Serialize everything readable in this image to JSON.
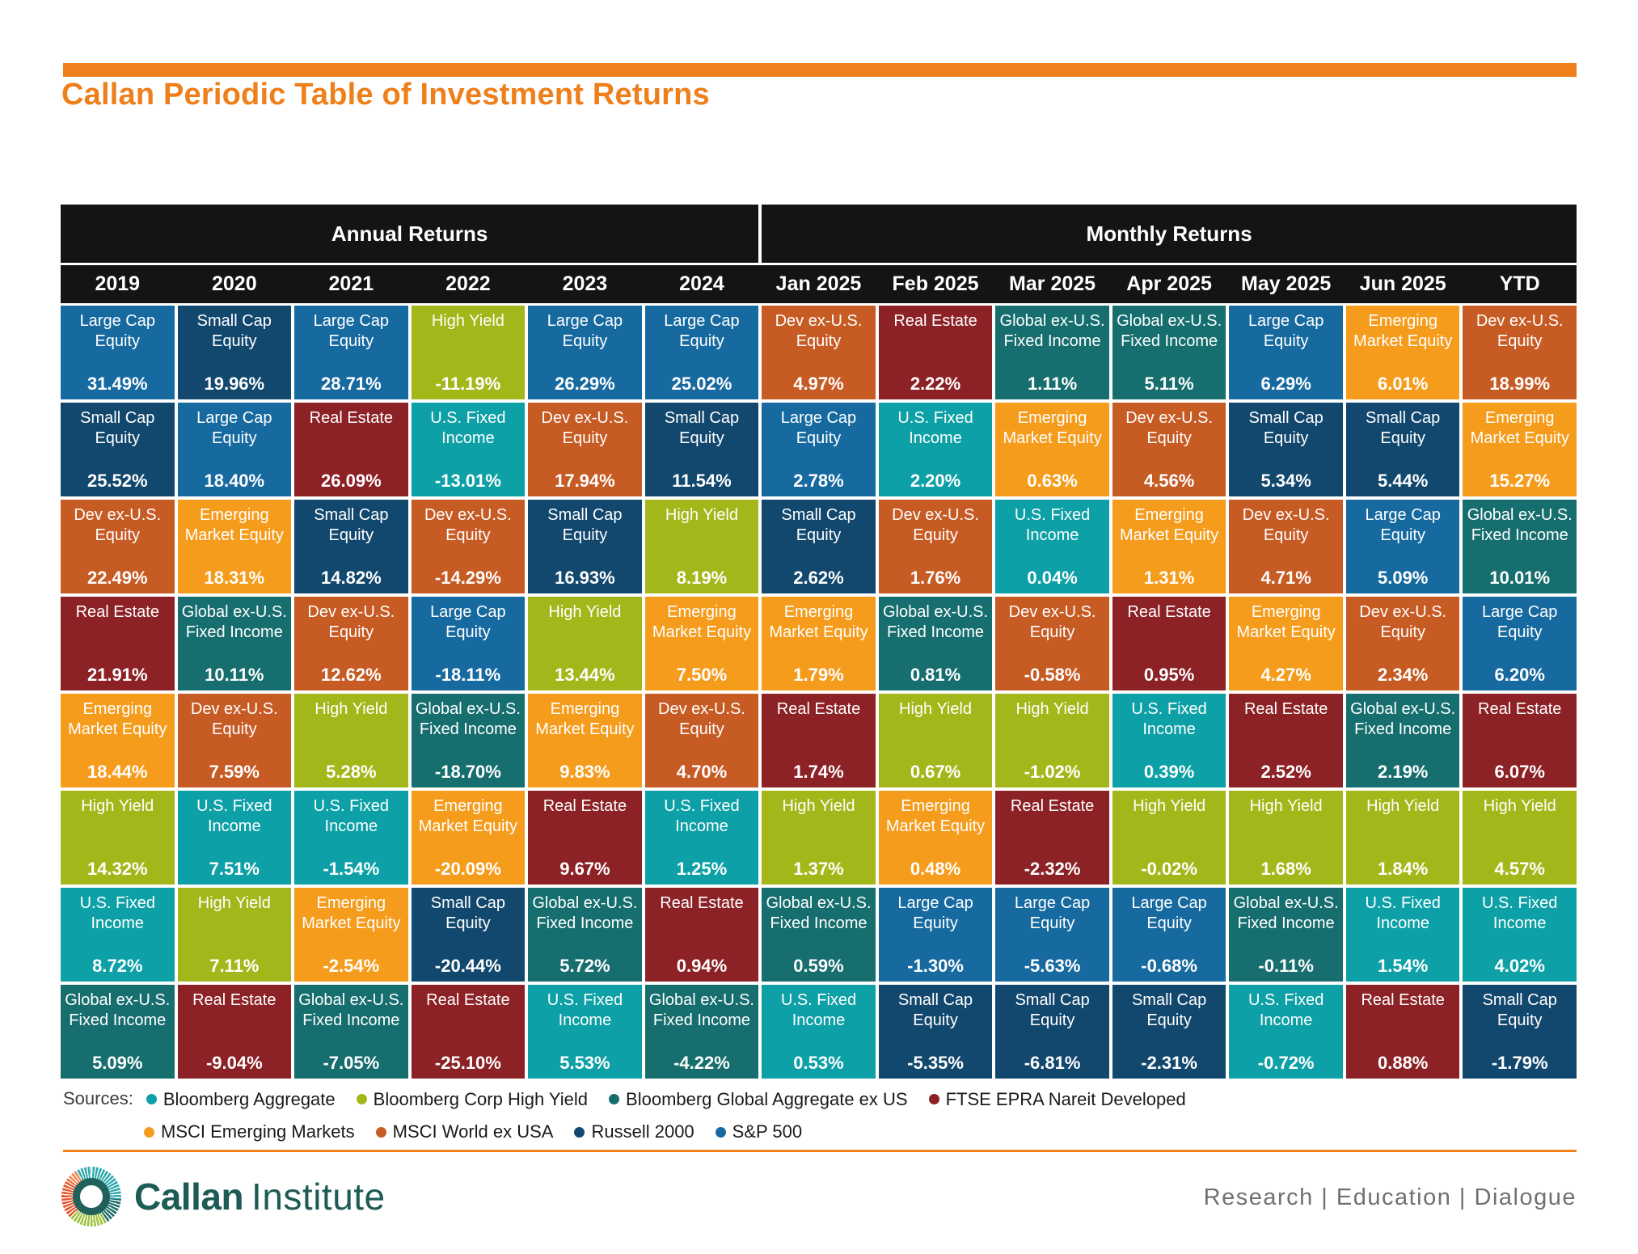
{
  "accent_color": "#EE7F1A",
  "header_bg_color": "#141414",
  "chart_data": {
    "type": "table",
    "title": "Callan Periodic Table of Investment Returns",
    "column_groups": [
      {
        "label": "Annual Returns",
        "span": 6
      },
      {
        "label": "Monthly Returns",
        "span": 7
      }
    ],
    "assets": {
      "large_cap": {
        "label": "Large Cap\nEquity",
        "color": "#176AA0"
      },
      "small_cap": {
        "label": "Small Cap\nEquity",
        "color": "#12486E"
      },
      "dev_ex_us": {
        "label": "Dev ex-U.S.\nEquity",
        "color": "#C75B24"
      },
      "em_equity": {
        "label": "Emerging\nMarket Equity",
        "color": "#F59C1D"
      },
      "high_yield": {
        "label": "High Yield",
        "color": "#A4B71A"
      },
      "us_fixed": {
        "label": "U.S. Fixed\nIncome",
        "color": "#0DA0A6"
      },
      "gl_ex_us_fi": {
        "label": "Global ex-U.S.\nFixed Income",
        "color": "#176E6E"
      },
      "real_estate": {
        "label": "Real Estate",
        "color": "#8C2126"
      }
    },
    "columns": [
      {
        "label": "2019",
        "group": "annual",
        "cells": [
          [
            "large_cap",
            "31.49%"
          ],
          [
            "small_cap",
            "25.52%"
          ],
          [
            "dev_ex_us",
            "22.49%"
          ],
          [
            "real_estate",
            "21.91%"
          ],
          [
            "em_equity",
            "18.44%"
          ],
          [
            "high_yield",
            "14.32%"
          ],
          [
            "us_fixed",
            "8.72%"
          ],
          [
            "gl_ex_us_fi",
            "5.09%"
          ]
        ]
      },
      {
        "label": "2020",
        "group": "annual",
        "cells": [
          [
            "small_cap",
            "19.96%"
          ],
          [
            "large_cap",
            "18.40%"
          ],
          [
            "em_equity",
            "18.31%"
          ],
          [
            "gl_ex_us_fi",
            "10.11%"
          ],
          [
            "dev_ex_us",
            "7.59%"
          ],
          [
            "us_fixed",
            "7.51%"
          ],
          [
            "high_yield",
            "7.11%"
          ],
          [
            "real_estate",
            "-9.04%"
          ]
        ]
      },
      {
        "label": "2021",
        "group": "annual",
        "cells": [
          [
            "large_cap",
            "28.71%"
          ],
          [
            "real_estate",
            "26.09%"
          ],
          [
            "small_cap",
            "14.82%"
          ],
          [
            "dev_ex_us",
            "12.62%"
          ],
          [
            "high_yield",
            "5.28%"
          ],
          [
            "us_fixed",
            "-1.54%"
          ],
          [
            "em_equity",
            "-2.54%"
          ],
          [
            "gl_ex_us_fi",
            "-7.05%"
          ]
        ]
      },
      {
        "label": "2022",
        "group": "annual",
        "cells": [
          [
            "high_yield",
            "-11.19%"
          ],
          [
            "us_fixed",
            "-13.01%"
          ],
          [
            "dev_ex_us",
            "-14.29%"
          ],
          [
            "large_cap",
            "-18.11%"
          ],
          [
            "gl_ex_us_fi",
            "-18.70%"
          ],
          [
            "em_equity",
            "-20.09%"
          ],
          [
            "small_cap",
            "-20.44%"
          ],
          [
            "real_estate",
            "-25.10%"
          ]
        ]
      },
      {
        "label": "2023",
        "group": "annual",
        "cells": [
          [
            "large_cap",
            "26.29%"
          ],
          [
            "dev_ex_us",
            "17.94%"
          ],
          [
            "small_cap",
            "16.93%"
          ],
          [
            "high_yield",
            "13.44%"
          ],
          [
            "em_equity",
            "9.83%"
          ],
          [
            "real_estate",
            "9.67%"
          ],
          [
            "gl_ex_us_fi",
            "5.72%"
          ],
          [
            "us_fixed",
            "5.53%"
          ]
        ]
      },
      {
        "label": "2024",
        "group": "annual",
        "cells": [
          [
            "large_cap",
            "25.02%"
          ],
          [
            "small_cap",
            "11.54%"
          ],
          [
            "high_yield",
            "8.19%"
          ],
          [
            "em_equity",
            "7.50%"
          ],
          [
            "dev_ex_us",
            "4.70%"
          ],
          [
            "us_fixed",
            "1.25%"
          ],
          [
            "real_estate",
            "0.94%"
          ],
          [
            "gl_ex_us_fi",
            "-4.22%"
          ]
        ]
      },
      {
        "label": "Jan 2025",
        "group": "monthly",
        "cells": [
          [
            "dev_ex_us",
            "4.97%"
          ],
          [
            "large_cap",
            "2.78%"
          ],
          [
            "small_cap",
            "2.62%"
          ],
          [
            "em_equity",
            "1.79%"
          ],
          [
            "real_estate",
            "1.74%"
          ],
          [
            "high_yield",
            "1.37%"
          ],
          [
            "gl_ex_us_fi",
            "0.59%"
          ],
          [
            "us_fixed",
            "0.53%"
          ]
        ]
      },
      {
        "label": "Feb 2025",
        "group": "monthly",
        "cells": [
          [
            "real_estate",
            "2.22%"
          ],
          [
            "us_fixed",
            "2.20%"
          ],
          [
            "dev_ex_us",
            "1.76%"
          ],
          [
            "gl_ex_us_fi",
            "0.81%"
          ],
          [
            "high_yield",
            "0.67%"
          ],
          [
            "em_equity",
            "0.48%"
          ],
          [
            "large_cap",
            "-1.30%"
          ],
          [
            "small_cap",
            "-5.35%"
          ]
        ]
      },
      {
        "label": "Mar 2025",
        "group": "monthly",
        "cells": [
          [
            "gl_ex_us_fi",
            "1.11%"
          ],
          [
            "em_equity",
            "0.63%"
          ],
          [
            "us_fixed",
            "0.04%"
          ],
          [
            "dev_ex_us",
            "-0.58%"
          ],
          [
            "high_yield",
            "-1.02%"
          ],
          [
            "real_estate",
            "-2.32%"
          ],
          [
            "large_cap",
            "-5.63%"
          ],
          [
            "small_cap",
            "-6.81%"
          ]
        ]
      },
      {
        "label": "Apr 2025",
        "group": "monthly",
        "cells": [
          [
            "gl_ex_us_fi",
            "5.11%"
          ],
          [
            "dev_ex_us",
            "4.56%"
          ],
          [
            "em_equity",
            "1.31%"
          ],
          [
            "real_estate",
            "0.95%"
          ],
          [
            "us_fixed",
            "0.39%"
          ],
          [
            "high_yield",
            "-0.02%"
          ],
          [
            "large_cap",
            "-0.68%"
          ],
          [
            "small_cap",
            "-2.31%"
          ]
        ]
      },
      {
        "label": "May 2025",
        "group": "monthly",
        "cells": [
          [
            "large_cap",
            "6.29%"
          ],
          [
            "small_cap",
            "5.34%"
          ],
          [
            "dev_ex_us",
            "4.71%"
          ],
          [
            "em_equity",
            "4.27%"
          ],
          [
            "real_estate",
            "2.52%"
          ],
          [
            "high_yield",
            "1.68%"
          ],
          [
            "gl_ex_us_fi",
            "-0.11%"
          ],
          [
            "us_fixed",
            "-0.72%"
          ]
        ]
      },
      {
        "label": "Jun 2025",
        "group": "monthly",
        "cells": [
          [
            "em_equity",
            "6.01%"
          ],
          [
            "small_cap",
            "5.44%"
          ],
          [
            "large_cap",
            "5.09%"
          ],
          [
            "dev_ex_us",
            "2.34%"
          ],
          [
            "gl_ex_us_fi",
            "2.19%"
          ],
          [
            "high_yield",
            "1.84%"
          ],
          [
            "us_fixed",
            "1.54%"
          ],
          [
            "real_estate",
            "0.88%"
          ]
        ]
      },
      {
        "label": "YTD",
        "group": "monthly",
        "cells": [
          [
            "dev_ex_us",
            "18.99%"
          ],
          [
            "em_equity",
            "15.27%"
          ],
          [
            "gl_ex_us_fi",
            "10.01%"
          ],
          [
            "large_cap",
            "6.20%"
          ],
          [
            "real_estate",
            "6.07%"
          ],
          [
            "high_yield",
            "4.57%"
          ],
          [
            "us_fixed",
            "4.02%"
          ],
          [
            "small_cap",
            "-1.79%"
          ]
        ]
      }
    ]
  },
  "sources": {
    "label": "Sources:",
    "rows": [
      [
        {
          "name": "Bloomberg Aggregate",
          "asset": "us_fixed"
        },
        {
          "name": "Bloomberg Corp High Yield",
          "asset": "high_yield"
        },
        {
          "name": "Bloomberg Global Aggregate ex US",
          "asset": "gl_ex_us_fi"
        },
        {
          "name": "FTSE EPRA Nareit Developed",
          "asset": "real_estate"
        }
      ],
      [
        {
          "name": "MSCI Emerging Markets",
          "asset": "em_equity"
        },
        {
          "name": "MSCI World ex USA",
          "asset": "dev_ex_us"
        },
        {
          "name": "Russell 2000",
          "asset": "small_cap"
        },
        {
          "name": "S&P 500",
          "asset": "large_cap"
        }
      ]
    ]
  },
  "footer": {
    "brand_bold": "Callan",
    "brand_light": "Institute",
    "tagline": "Research | Education | Dialogue"
  }
}
